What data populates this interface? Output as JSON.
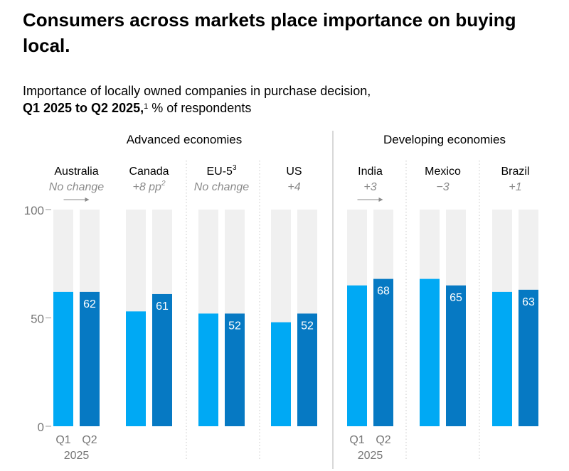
{
  "title": "Consumers across markets place importance on buying local.",
  "subtitle": {
    "line1": "Importance of locally owned companies in purchase decision,",
    "line2_bold": "Q1 2025 to Q2 2025,",
    "line2_sup": "1",
    "line2_rest": " % of respondents"
  },
  "colors": {
    "q1": "#00a9f4",
    "q2": "#0679c3",
    "track": "#f0f0f0",
    "axis_text": "#777777",
    "note_text": "#8a8a8a",
    "divider": "#bdbdbd"
  },
  "chart_data": {
    "type": "bar",
    "ylim": [
      0,
      100
    ],
    "yticks": [
      0,
      50,
      100
    ],
    "series": [
      {
        "name": "Q1",
        "values": [
          62,
          53,
          52,
          48,
          65,
          68,
          62
        ]
      },
      {
        "name": "Q2",
        "values": [
          62,
          61,
          52,
          52,
          68,
          65,
          63
        ]
      }
    ],
    "groups": [
      {
        "label": "Advanced economies",
        "countries": [
          0,
          1,
          2,
          3
        ]
      },
      {
        "label": "Developing economies",
        "countries": [
          4,
          5,
          6
        ]
      }
    ],
    "countries": [
      {
        "name": "Australia",
        "name_sup": "",
        "change": "No change",
        "change_sup": "",
        "arrow": true,
        "label_q1": "",
        "label_q2": "62",
        "period_labels": true
      },
      {
        "name": "Canada",
        "name_sup": "",
        "change": "+8 pp",
        "change_sup": "2",
        "arrow": false,
        "label_q1": "",
        "label_q2": "61",
        "period_labels": false
      },
      {
        "name": "EU-5",
        "name_sup": "3",
        "change": "No change",
        "change_sup": "",
        "arrow": false,
        "label_q1": "",
        "label_q2": "52",
        "period_labels": false
      },
      {
        "name": "US",
        "name_sup": "",
        "change": "+4",
        "change_sup": "",
        "arrow": false,
        "label_q1": "",
        "label_q2": "52",
        "period_labels": false
      },
      {
        "name": "India",
        "name_sup": "",
        "change": "+3",
        "change_sup": "",
        "arrow": true,
        "label_q1": "",
        "label_q2": "68",
        "period_labels": true
      },
      {
        "name": "Mexico",
        "name_sup": "",
        "change": "−3",
        "change_sup": "",
        "arrow": false,
        "label_q1": "",
        "label_q2": "65",
        "period_labels": false
      },
      {
        "name": "Brazil",
        "name_sup": "",
        "change": "+1",
        "change_sup": "",
        "arrow": false,
        "label_q1": "",
        "label_q2": "63",
        "period_labels": false
      }
    ],
    "period": {
      "q1": "Q1",
      "q2": "Q2",
      "year": "2025"
    }
  }
}
